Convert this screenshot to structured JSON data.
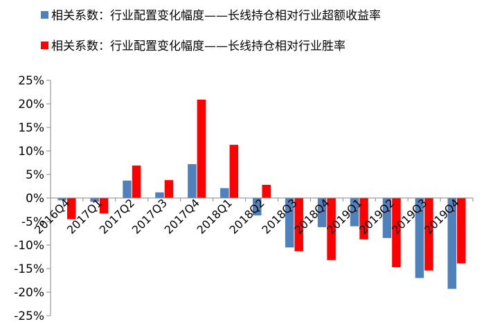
{
  "chart_data": {
    "type": "bar",
    "title": "",
    "xlabel": "",
    "ylabel": "",
    "categories": [
      "2016Q4",
      "2017Q1",
      "2017Q2",
      "2017Q3",
      "2017Q4",
      "2018Q1",
      "2018Q2",
      "2018Q3",
      "2018Q4",
      "2019Q1",
      "2019Q2",
      "2019Q3",
      "2019Q4"
    ],
    "series": [
      {
        "name": "相关系数：行业配置变化幅度——长线持仓相对行业超额收益率",
        "color": "#4F81BD",
        "values": [
          -0.5,
          -0.8,
          3.7,
          1.2,
          7.2,
          2.1,
          -3.7,
          -10.5,
          -6.2,
          -6.0,
          -8.5,
          -17.0,
          -19.3
        ]
      },
      {
        "name": "相关系数：行业配置变化幅度——长线持仓相对行业胜率",
        "color": "#FF0000",
        "values": [
          -4.5,
          -3.3,
          6.9,
          3.8,
          20.9,
          11.3,
          2.8,
          -11.3,
          -13.2,
          -8.8,
          -14.7,
          -15.4,
          -13.9
        ]
      }
    ],
    "yticks": [
      "25%",
      "20%",
      "15%",
      "10%",
      "5%",
      "0%",
      "-5%",
      "-10%",
      "-15%",
      "-20%",
      "-25%"
    ],
    "ylim": [
      -25,
      25
    ],
    "grid": false,
    "legend_position": "top-left"
  }
}
